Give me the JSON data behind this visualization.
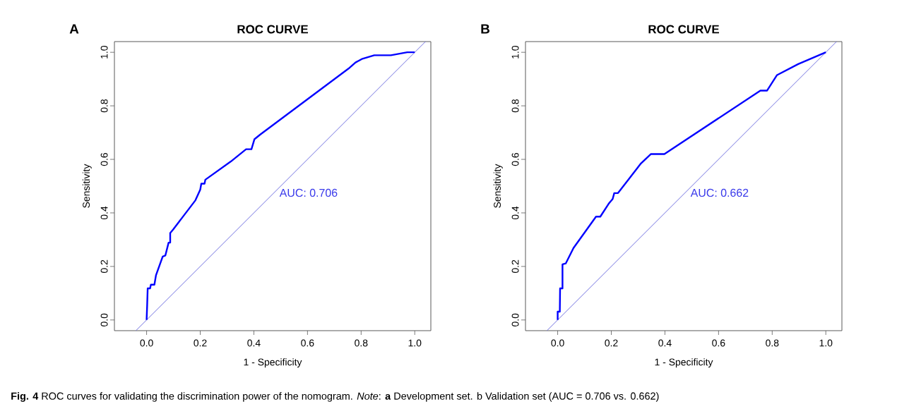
{
  "chart_data": [
    {
      "type": "line",
      "title": "ROC CURVE",
      "xlabel": "1 - Specificity",
      "ylabel": "Sensitivity",
      "marker": "none",
      "line_style": "solid",
      "xlim": [
        -0.12,
        1.06
      ],
      "ylim": [
        -0.04,
        1.04
      ],
      "xticks": [
        {
          "value": 0,
          "label": "0.0"
        },
        {
          "value": 0.2,
          "label": "0.2"
        },
        {
          "value": 0.4,
          "label": "0.4"
        },
        {
          "value": 0.6,
          "label": "0.6"
        },
        {
          "value": 0.8,
          "label": "0.8"
        },
        {
          "value": 1,
          "label": "1.0"
        }
      ],
      "yticks": [
        {
          "value": 0,
          "label": "0.0"
        },
        {
          "value": 0.2,
          "label": "0.2"
        },
        {
          "value": 0.4,
          "label": "0.4"
        },
        {
          "value": 0.6,
          "label": "0.6"
        },
        {
          "value": 0.8,
          "label": "0.8"
        },
        {
          "value": 1,
          "label": "1.0"
        }
      ],
      "series": [
        {
          "color": "#7070e0",
          "x": [
            -0.04,
            1.04
          ],
          "values": [
            -0.04,
            1.04
          ]
        },
        {
          "color": "#0000ff",
          "x": [
            0,
            0.002,
            0.004,
            0.013,
            0.016,
            0.029,
            0.035,
            0.06,
            0.07,
            0.082,
            0.088,
            0.088,
            0.099,
            0.182,
            0.2,
            0.204,
            0.216,
            0.219,
            0.314,
            0.371,
            0.391,
            0.402,
            0.424,
            0.753,
            0.779,
            0.805,
            0.849,
            0.911,
            0.972,
            1
          ],
          "values": [
            0,
            0.053,
            0.118,
            0.118,
            0.132,
            0.132,
            0.167,
            0.237,
            0.241,
            0.289,
            0.289,
            0.325,
            0.338,
            0.447,
            0.487,
            0.509,
            0.509,
            0.524,
            0.592,
            0.638,
            0.638,
            0.675,
            0.693,
            0.939,
            0.962,
            0.976,
            0.989,
            0.989,
            1,
            1
          ]
        }
      ],
      "annotations": [
        "A",
        "AUC: 0.706",
        "**Fig. 4** ROC curves for validating the discrimination power of the nomogram. *Note*: **a** Development set. b Validation set (AUC = 0.706 vs. 0.662)"
      ]
    },
    {
      "type": "line",
      "title": "ROC CURVE",
      "xlabel": "1 - Specificity",
      "ylabel": "Sensitivity",
      "marker": "none",
      "line_style": "solid",
      "xlim": [
        -0.12,
        1.06
      ],
      "ylim": [
        -0.04,
        1.04
      ],
      "xticks": [
        {
          "value": 0,
          "label": "0.0"
        },
        {
          "value": 0.2,
          "label": "0.2"
        },
        {
          "value": 0.4,
          "label": "0.4"
        },
        {
          "value": 0.6,
          "label": "0.6"
        },
        {
          "value": 0.8,
          "label": "0.8"
        },
        {
          "value": 1,
          "label": "1.0"
        }
      ],
      "yticks": [
        {
          "value": 0,
          "label": "0.0"
        },
        {
          "value": 0.2,
          "label": "0.2"
        },
        {
          "value": 0.4,
          "label": "0.4"
        },
        {
          "value": 0.6,
          "label": "0.6"
        },
        {
          "value": 0.8,
          "label": "0.8"
        },
        {
          "value": 1,
          "label": "1.0"
        }
      ],
      "series": [
        {
          "color": "#7070e0",
          "x": [
            -0.04,
            1.04
          ],
          "values": [
            -0.04,
            1.04
          ]
        },
        {
          "color": "#0000ff",
          "x": [
            0,
            0,
            0.008,
            0.009,
            0.018,
            0.018,
            0.03,
            0.059,
            0.143,
            0.159,
            0.19,
            0.205,
            0.211,
            0.225,
            0.309,
            0.348,
            0.398,
            0.756,
            0.781,
            0.818,
            0.897,
            1
          ],
          "values": [
            0,
            0.031,
            0.031,
            0.118,
            0.118,
            0.208,
            0.211,
            0.269,
            0.386,
            0.386,
            0.434,
            0.452,
            0.474,
            0.474,
            0.583,
            0.62,
            0.62,
            0.857,
            0.857,
            0.915,
            0.956,
            1
          ]
        }
      ],
      "annotations": [
        "B",
        "AUC: 0.662"
      ]
    }
  ]
}
